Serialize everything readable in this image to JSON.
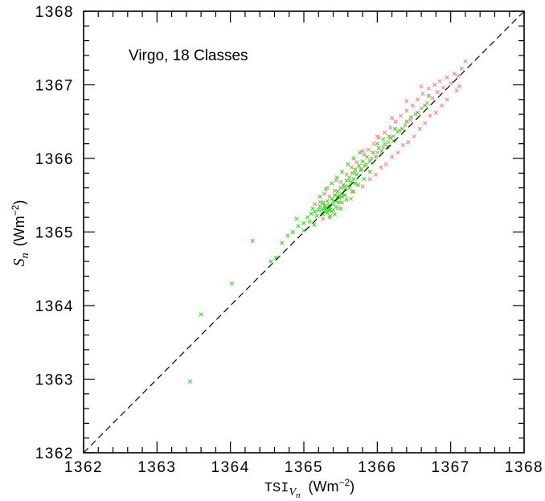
{
  "chart_data": {
    "type": "scatter",
    "title": "",
    "annotation": "Virgo, 18 Classes",
    "xlabel": {
      "main": "TSI",
      "sub_italic": "V",
      "sub_sub_italic": "n",
      "units": "(Wm",
      "units_sup": "−2",
      "units_close": ")"
    },
    "ylabel": {
      "main_italic": "S",
      "sub_italic": "n",
      "units": "(Wm",
      "units_sup": "−2",
      "units_close": ")"
    },
    "xlim": [
      1362,
      1368
    ],
    "ylim": [
      1362,
      1368
    ],
    "xticks": [
      "1362",
      "1363",
      "1364",
      "1365",
      "1366",
      "1367",
      "1368"
    ],
    "yticks": [
      "1362",
      "1363",
      "1364",
      "1365",
      "1366",
      "1367",
      "1368"
    ],
    "reference_line": {
      "style": "dashed",
      "from": [
        1362,
        1362
      ],
      "to": [
        1368,
        1368
      ],
      "color": "#000000"
    },
    "grid": false,
    "series": [
      {
        "color": "#ff8080",
        "marker": "x",
        "points": [
          [
            1365.15,
            1365.38
          ],
          [
            1365.22,
            1365.41
          ],
          [
            1365.3,
            1365.35
          ],
          [
            1365.28,
            1365.52
          ],
          [
            1365.35,
            1365.48
          ],
          [
            1365.42,
            1365.56
          ],
          [
            1365.48,
            1365.5
          ],
          [
            1365.5,
            1365.68
          ],
          [
            1365.55,
            1365.62
          ],
          [
            1365.58,
            1365.78
          ],
          [
            1365.62,
            1365.7
          ],
          [
            1365.65,
            1365.88
          ],
          [
            1365.7,
            1365.8
          ],
          [
            1365.72,
            1365.95
          ],
          [
            1365.78,
            1365.86
          ],
          [
            1365.82,
            1366.05
          ],
          [
            1365.85,
            1365.92
          ],
          [
            1365.88,
            1366.12
          ],
          [
            1365.92,
            1366.0
          ],
          [
            1365.95,
            1366.2
          ],
          [
            1366.0,
            1366.08
          ],
          [
            1366.02,
            1366.28
          ],
          [
            1366.08,
            1366.15
          ],
          [
            1366.1,
            1366.35
          ],
          [
            1366.15,
            1366.22
          ],
          [
            1366.18,
            1366.42
          ],
          [
            1366.22,
            1366.3
          ],
          [
            1366.25,
            1366.5
          ],
          [
            1366.3,
            1366.38
          ],
          [
            1366.32,
            1366.58
          ],
          [
            1366.38,
            1366.45
          ],
          [
            1366.4,
            1366.65
          ],
          [
            1366.45,
            1366.52
          ],
          [
            1366.48,
            1366.72
          ],
          [
            1366.52,
            1366.6
          ],
          [
            1366.55,
            1366.8
          ],
          [
            1366.6,
            1366.68
          ],
          [
            1366.62,
            1366.88
          ],
          [
            1366.68,
            1366.75
          ],
          [
            1366.7,
            1366.95
          ],
          [
            1366.75,
            1366.82
          ],
          [
            1366.78,
            1367.0
          ],
          [
            1366.82,
            1366.9
          ],
          [
            1366.85,
            1367.05
          ],
          [
            1366.9,
            1366.96
          ],
          [
            1366.95,
            1367.1
          ],
          [
            1367.0,
            1367.02
          ],
          [
            1367.05,
            1367.15
          ],
          [
            1367.1,
            1367.12
          ],
          [
            1367.15,
            1367.22
          ],
          [
            1367.2,
            1367.32
          ],
          [
            1367.12,
            1366.98
          ],
          [
            1366.88,
            1366.72
          ],
          [
            1366.72,
            1366.58
          ],
          [
            1366.58,
            1366.4
          ],
          [
            1366.42,
            1366.22
          ],
          [
            1366.28,
            1366.08
          ],
          [
            1366.12,
            1365.92
          ],
          [
            1365.98,
            1365.78
          ],
          [
            1365.8,
            1365.62
          ],
          [
            1365.64,
            1365.45
          ],
          [
            1365.46,
            1365.32
          ],
          [
            1365.36,
            1365.22
          ],
          [
            1365.26,
            1365.18
          ],
          [
            1365.4,
            1365.3
          ],
          [
            1365.52,
            1365.4
          ],
          [
            1365.68,
            1365.55
          ],
          [
            1365.9,
            1365.72
          ],
          [
            1366.05,
            1365.88
          ],
          [
            1366.2,
            1366.02
          ],
          [
            1366.35,
            1366.18
          ],
          [
            1366.5,
            1366.3
          ],
          [
            1366.65,
            1366.48
          ],
          [
            1366.8,
            1366.62
          ],
          [
            1366.95,
            1366.8
          ],
          [
            1367.08,
            1366.92
          ],
          [
            1366.0,
            1366.3
          ],
          [
            1366.2,
            1366.55
          ],
          [
            1366.4,
            1366.78
          ],
          [
            1366.6,
            1366.98
          ],
          [
            1365.8,
            1366.1
          ],
          [
            1365.6,
            1365.92
          ],
          [
            1365.44,
            1365.7
          ],
          [
            1365.32,
            1365.6
          ]
        ]
      },
      {
        "color": "#33dd22",
        "marker": "x",
        "points": [
          [
            1363.45,
            1362.97
          ],
          [
            1363.6,
            1363.88
          ],
          [
            1364.02,
            1364.3
          ],
          [
            1364.3,
            1364.88
          ],
          [
            1364.55,
            1364.6
          ],
          [
            1364.62,
            1364.65
          ],
          [
            1364.7,
            1364.85
          ],
          [
            1364.78,
            1364.95
          ],
          [
            1364.85,
            1365.0
          ],
          [
            1364.92,
            1365.08
          ],
          [
            1365.0,
            1365.12
          ],
          [
            1365.05,
            1365.2
          ],
          [
            1365.1,
            1365.25
          ],
          [
            1365.12,
            1365.32
          ],
          [
            1365.15,
            1365.28
          ],
          [
            1365.18,
            1365.22
          ],
          [
            1365.2,
            1365.3
          ],
          [
            1365.22,
            1365.35
          ],
          [
            1365.25,
            1365.25
          ],
          [
            1365.26,
            1365.4
          ],
          [
            1365.28,
            1365.32
          ],
          [
            1365.3,
            1365.28
          ],
          [
            1365.32,
            1365.42
          ],
          [
            1365.34,
            1365.36
          ],
          [
            1365.36,
            1365.3
          ],
          [
            1365.38,
            1365.45
          ],
          [
            1365.4,
            1365.38
          ],
          [
            1365.42,
            1365.5
          ],
          [
            1365.44,
            1365.42
          ],
          [
            1365.46,
            1365.55
          ],
          [
            1365.48,
            1365.46
          ],
          [
            1365.5,
            1365.6
          ],
          [
            1365.52,
            1365.52
          ],
          [
            1365.54,
            1365.64
          ],
          [
            1365.56,
            1365.58
          ],
          [
            1365.58,
            1365.7
          ],
          [
            1365.6,
            1365.62
          ],
          [
            1365.62,
            1365.74
          ],
          [
            1365.64,
            1365.68
          ],
          [
            1365.66,
            1365.8
          ],
          [
            1365.68,
            1365.72
          ],
          [
            1365.7,
            1365.85
          ],
          [
            1365.72,
            1365.78
          ],
          [
            1365.75,
            1365.9
          ],
          [
            1365.78,
            1365.84
          ],
          [
            1365.8,
            1365.96
          ],
          [
            1365.83,
            1365.9
          ],
          [
            1365.86,
            1366.02
          ],
          [
            1365.9,
            1365.96
          ],
          [
            1365.94,
            1366.08
          ],
          [
            1365.98,
            1366.02
          ],
          [
            1366.02,
            1366.14
          ],
          [
            1366.06,
            1366.1
          ],
          [
            1366.1,
            1366.2
          ],
          [
            1366.14,
            1366.16
          ],
          [
            1366.18,
            1366.28
          ],
          [
            1366.22,
            1366.24
          ],
          [
            1366.28,
            1366.36
          ],
          [
            1366.34,
            1366.4
          ],
          [
            1366.4,
            1366.5
          ],
          [
            1366.46,
            1366.56
          ],
          [
            1366.55,
            1366.62
          ],
          [
            1366.65,
            1366.72
          ],
          [
            1366.7,
            1366.85
          ],
          [
            1365.22,
            1365.48
          ],
          [
            1365.3,
            1365.58
          ],
          [
            1365.38,
            1365.66
          ],
          [
            1365.45,
            1365.74
          ],
          [
            1365.52,
            1365.82
          ],
          [
            1365.6,
            1365.92
          ],
          [
            1365.68,
            1366.0
          ],
          [
            1365.76,
            1366.08
          ],
          [
            1365.35,
            1365.2
          ],
          [
            1365.42,
            1365.24
          ],
          [
            1365.5,
            1365.32
          ],
          [
            1365.58,
            1365.44
          ],
          [
            1365.66,
            1365.55
          ],
          [
            1365.74,
            1365.64
          ],
          [
            1365.82,
            1365.72
          ],
          [
            1365.9,
            1365.82
          ],
          [
            1365.24,
            1365.3
          ],
          [
            1365.28,
            1365.36
          ],
          [
            1365.32,
            1365.26
          ],
          [
            1365.36,
            1365.34
          ],
          [
            1365.4,
            1365.42
          ],
          [
            1365.44,
            1365.34
          ],
          [
            1365.48,
            1365.4
          ],
          [
            1365.52,
            1365.48
          ],
          [
            1365.26,
            1365.24
          ],
          [
            1365.3,
            1365.32
          ],
          [
            1365.34,
            1365.3
          ],
          [
            1365.38,
            1365.28
          ],
          [
            1365.46,
            1365.48
          ],
          [
            1365.56,
            1365.5
          ],
          [
            1365.62,
            1365.6
          ],
          [
            1365.7,
            1365.66
          ],
          [
            1366.0,
            1366.2
          ],
          [
            1366.08,
            1366.26
          ],
          [
            1366.16,
            1366.3
          ],
          [
            1366.24,
            1366.4
          ],
          [
            1364.9,
            1365.18
          ],
          [
            1365.0,
            1365.02
          ],
          [
            1365.08,
            1365.14
          ],
          [
            1365.14,
            1365.1
          ]
        ]
      }
    ]
  }
}
